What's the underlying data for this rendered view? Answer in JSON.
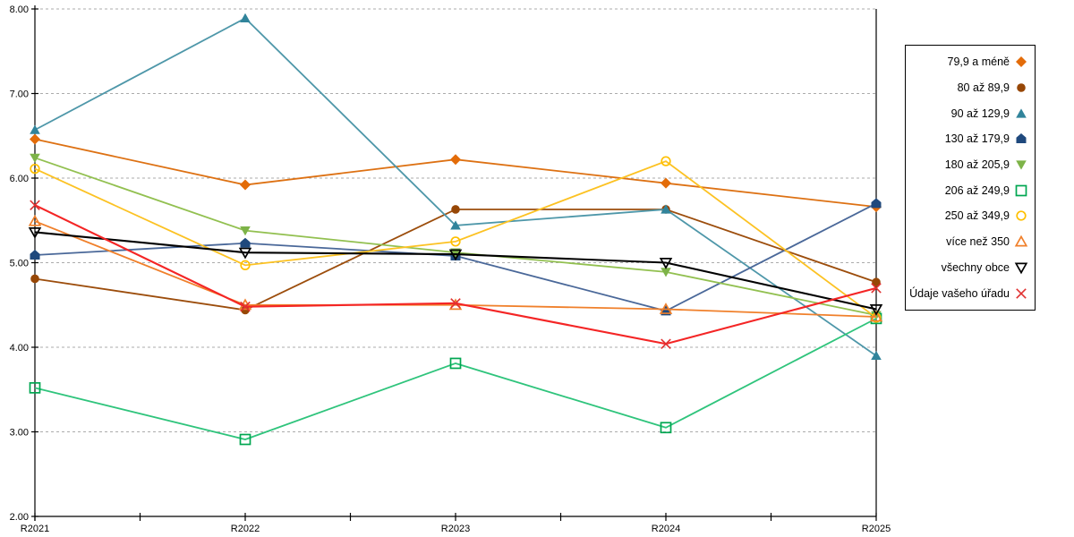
{
  "chart_data": {
    "type": "line",
    "title": "",
    "xlabel": "",
    "ylabel": "",
    "categories": [
      "R2021",
      "R2022",
      "R2023",
      "R2024",
      "R2025"
    ],
    "ylim": [
      2.0,
      8.0
    ],
    "ytick_step": 1.0,
    "ytick_labels": [
      "2.00",
      "3.00",
      "4.00",
      "5.00",
      "6.00",
      "7.00",
      "8.00"
    ],
    "grid": "horizontal-dashed",
    "gridline_color": "#ABABAB",
    "axis_color": "#000000",
    "legend_position": "right-box",
    "series": [
      {
        "name": "79,9 a méně",
        "marker": "diamond",
        "marker_fill": "solid",
        "color": "#E36C09",
        "line_color": "#DD7113",
        "values": [
          6.46,
          5.92,
          6.22,
          5.94,
          5.66
        ]
      },
      {
        "name": "80 až 89,9",
        "marker": "circle",
        "marker_fill": "solid",
        "color": "#974706",
        "line_color": "#9C4D0C",
        "values": [
          4.81,
          4.44,
          5.63,
          5.63,
          4.77
        ]
      },
      {
        "name": "90 až 129,9",
        "marker": "triangle-up",
        "marker_fill": "solid",
        "color": "#31849B",
        "line_color": "#4E97A9",
        "values": [
          6.57,
          7.89,
          5.44,
          5.63,
          3.9
        ]
      },
      {
        "name": "130 až 179,9",
        "marker": "pentagon",
        "marker_fill": "solid",
        "color": "#1F497D",
        "line_color": "#4A6899",
        "values": [
          5.09,
          5.23,
          5.08,
          4.43,
          5.7
        ]
      },
      {
        "name": "180 až 205,9",
        "marker": "triangle-down",
        "marker_fill": "solid",
        "color": "#7DB348",
        "line_color": "#92C050",
        "values": [
          6.24,
          5.38,
          5.12,
          4.89,
          4.38
        ]
      },
      {
        "name": "206 až 249,9",
        "marker": "square",
        "marker_fill": "open",
        "color": "#00A651",
        "line_color": "#2FC47C",
        "values": [
          3.52,
          2.91,
          3.81,
          3.05,
          4.34
        ]
      },
      {
        "name": "250 až 349,9",
        "marker": "circle",
        "marker_fill": "open",
        "color": "#FFC000",
        "line_color": "#FCC223",
        "values": [
          6.11,
          4.97,
          5.25,
          6.2,
          4.35
        ]
      },
      {
        "name": "více než 350",
        "marker": "triangle-up",
        "marker_fill": "open",
        "color": "#F0802B",
        "line_color": "#F0802B",
        "values": [
          5.49,
          4.5,
          4.5,
          4.45,
          4.36
        ]
      },
      {
        "name": "všechny obce",
        "marker": "triangle-down",
        "marker_fill": "open",
        "color": "#000000",
        "line_color": "#000000",
        "values": [
          5.36,
          5.12,
          5.1,
          5.0,
          4.45
        ]
      },
      {
        "name": "Údaje vašeho úřadu",
        "marker": "x",
        "marker_fill": "open",
        "color": "#E03030",
        "line_color": "#F42525",
        "values": [
          5.68,
          4.48,
          4.52,
          4.04,
          4.7
        ]
      }
    ]
  }
}
